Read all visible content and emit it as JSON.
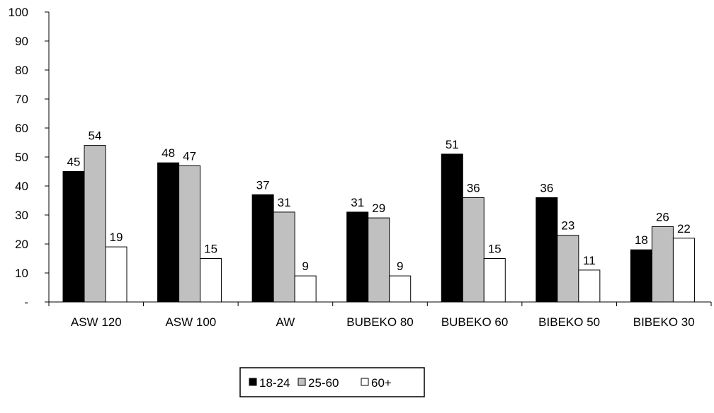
{
  "chart_data": {
    "type": "bar",
    "categories": [
      "ASW 120",
      "ASW 100",
      "AW",
      "BUBEKO 80",
      "BUBEKO 60",
      "BIBEKO 50",
      "BIBEKO 30"
    ],
    "series": [
      {
        "name": "18-24",
        "color": "#000000",
        "values": [
          45,
          48,
          37,
          31,
          51,
          36,
          18
        ]
      },
      {
        "name": "25-60",
        "color": "#c0c0c0",
        "values": [
          54,
          47,
          31,
          29,
          36,
          23,
          26
        ]
      },
      {
        "name": "60+",
        "color": "#ffffff",
        "values": [
          19,
          15,
          9,
          9,
          15,
          11,
          22
        ]
      }
    ],
    "y_tick_labels": [
      "-",
      "10",
      "20",
      "30",
      "40",
      "50",
      "60",
      "70",
      "80",
      "90",
      "100"
    ],
    "ylim": [
      0,
      100
    ],
    "title": "",
    "xlabel": "",
    "ylabel": "",
    "grid": false,
    "legend_position": "bottom"
  }
}
